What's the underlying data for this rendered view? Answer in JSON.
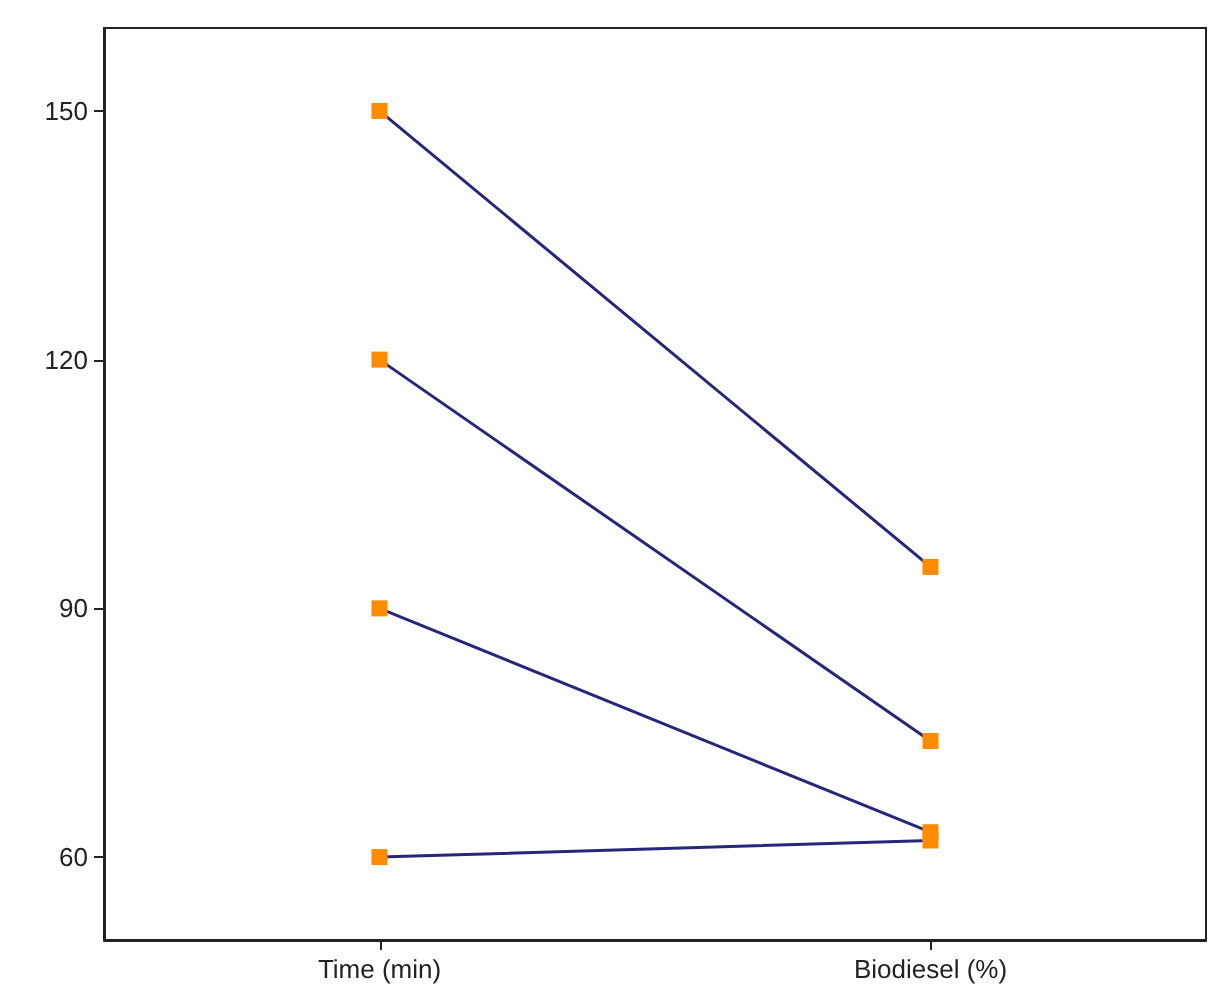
{
  "chart_data": {
    "type": "line",
    "categories": [
      "Time (min)",
      "Biodiesel (%)"
    ],
    "series": [
      {
        "color": "#26267a",
        "colors": [
          "#ff8c00",
          "#ff8c00"
        ],
        "values": [
          150,
          95
        ]
      },
      {
        "color": "#26267a",
        "colors": [
          "#ff8c00",
          "#ff8c00"
        ],
        "values": [
          120,
          74
        ]
      },
      {
        "color": "#26267a",
        "colors": [
          "#ff8c00",
          "#ff8c00"
        ],
        "values": [
          90,
          63
        ]
      },
      {
        "color": "#26267a",
        "colors": [
          "#ff8c00",
          "#ff8c00"
        ],
        "values": [
          60,
          62
        ]
      }
    ],
    "ylim": [
      50,
      160
    ],
    "yticks": [
      60,
      90,
      120,
      150
    ],
    "grid": false,
    "marker": "square",
    "line_style": "solid"
  }
}
